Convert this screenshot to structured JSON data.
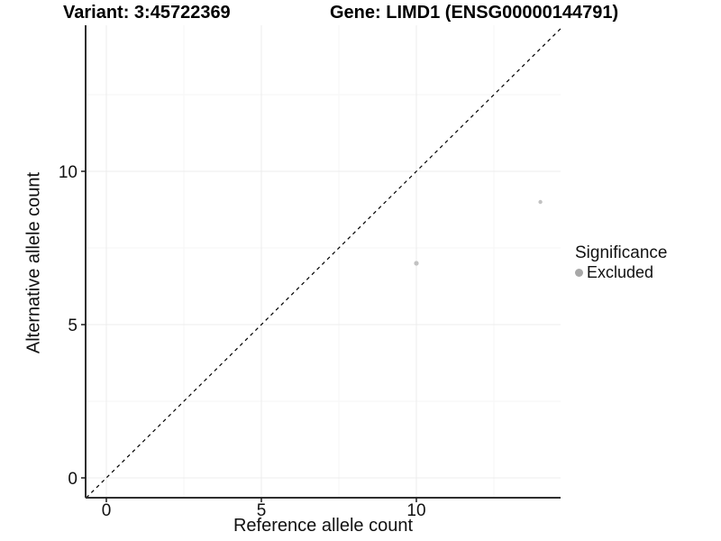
{
  "title": {
    "left": "Variant: 3:45722369",
    "right": "Gene: LIMD1 (ENSG00000144791)"
  },
  "legend": {
    "title": "Significance",
    "items": [
      {
        "label": "Excluded",
        "key_color": "#a8a8a8",
        "key_shape": "circle"
      }
    ],
    "position": "right"
  },
  "chart_data": {
    "type": "scatter",
    "title": "Variant: 3:45722369   Gene: LIMD1 (ENSG00000144791)",
    "xlabel": "Reference allele count",
    "ylabel": "Alternative allele count",
    "xlim": [
      -0.67,
      14.65
    ],
    "ylim": [
      -0.65,
      14.76
    ],
    "x_ticks": [
      0,
      5,
      10
    ],
    "y_ticks": [
      0,
      5,
      10
    ],
    "x_minor_ticks": [
      2.5,
      7.5,
      12.5
    ],
    "y_minor_ticks": [
      2.5,
      7.5,
      12.5
    ],
    "grid": true,
    "legend_position": "right",
    "series": [
      {
        "name": "Excluded",
        "color": "#c2c2c2",
        "points": [
          {
            "x": 10,
            "y": 7,
            "size": 2.6
          },
          {
            "x": 14,
            "y": 9,
            "size": 2.2
          }
        ]
      }
    ],
    "reference_line": {
      "kind": "identity",
      "equation": "y = x",
      "style": "dashed",
      "color": "#000000"
    }
  },
  "colors": {
    "background": "#ffffff",
    "grid_major": "#ececec",
    "grid_minor": "#f5f5f5",
    "axis_line": "#2f2f2f",
    "tick_mark": "#1a1a1a",
    "tick_label": "#111111",
    "reference_line": "#000000"
  }
}
